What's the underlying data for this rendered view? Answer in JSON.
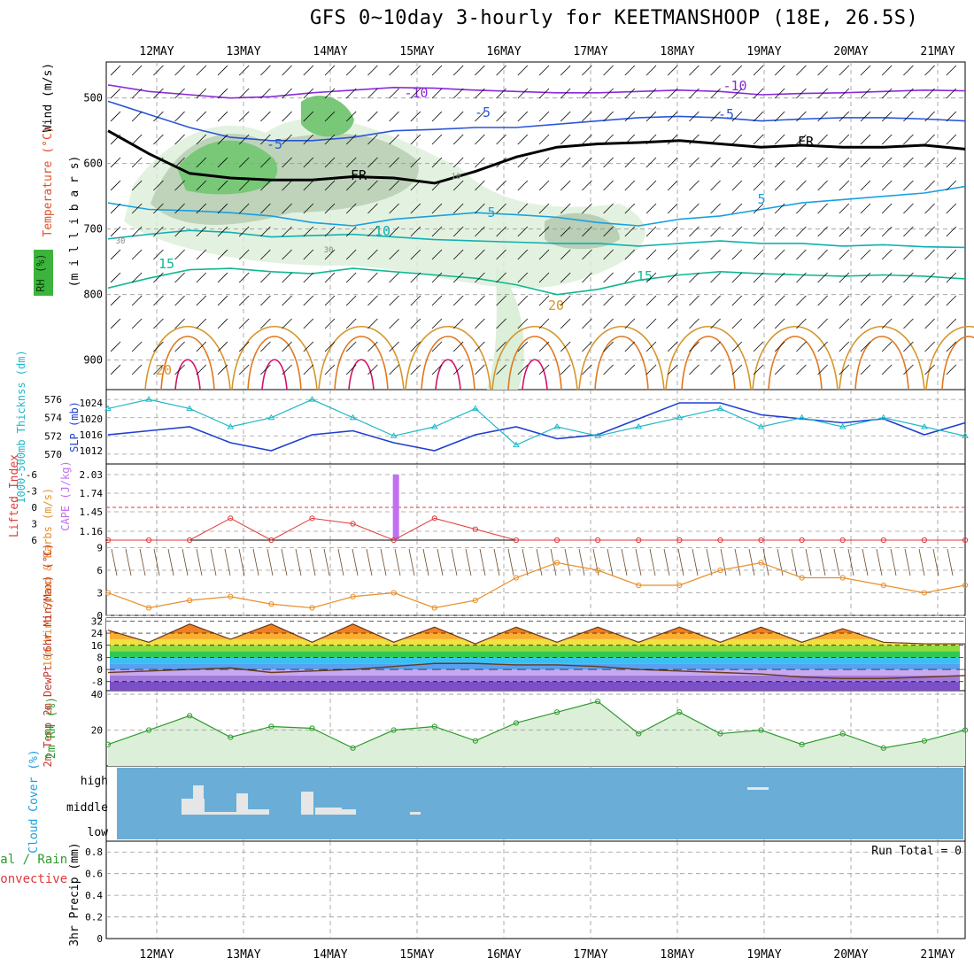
{
  "title": "GFS 0~10day 3-hourly for KEETMANSHOOP (18E, 26.5S)",
  "x_axis": {
    "labels": [
      "12MAY",
      "13MAY",
      "14MAY",
      "15MAY",
      "16MAY",
      "17MAY",
      "18MAY",
      "19MAY",
      "20MAY",
      "21MAY"
    ]
  },
  "run_total": "Run Total = 0",
  "colors": {
    "temp_warm": "#d4962a",
    "temp_hot": "#e07820",
    "temp_vhot": "#d4106a",
    "temp_cold": "#8a2bd8",
    "temp_mid": "#2a56d8",
    "temp_cool": "#1aa0e0",
    "temp_teal": "#10b0b0",
    "temp_green": "#10b890",
    "slp": "#1f3fd0",
    "thickness": "#20b8c8",
    "lifted": "#e03a3a",
    "cape": "#c070f0",
    "wind": "#e8902a",
    "rh": "#2e9a2e",
    "cloud_bg": "#6aaed8",
    "cloud_fill": "#e6e6e6"
  },
  "chart_data": [
    {
      "type": "contour",
      "name": "Vertical cross-section",
      "ylabel_parts": [
        {
          "text": "Wind (m/s)",
          "color": "#000000"
        },
        {
          "text": "Temperature (°C)",
          "color": "#e0502a"
        },
        {
          "text": "RH (%)",
          "color": "#2e9a2e"
        }
      ],
      "ylabel2": "(m i l l i b a r s)",
      "yticks": [
        500,
        600,
        700,
        800,
        900
      ],
      "ylim": [
        445,
        945
      ],
      "contour_labels": [
        "-10",
        "-10",
        "-5",
        "-5",
        "-5",
        "FR",
        "FR",
        "5",
        "5",
        "10",
        "15",
        "15",
        "20",
        "20",
        "30",
        "30",
        "10"
      ],
      "isotherms": [
        {
          "label": "-10",
          "color": "#8a2bd8",
          "values": [
            480,
            490,
            495,
            500,
            498,
            492,
            488,
            484,
            485,
            488,
            490,
            492,
            492,
            490,
            488,
            490,
            495,
            493,
            492,
            490,
            488,
            489
          ]
        },
        {
          "label": "-5",
          "color": "#2a56d8",
          "values": [
            505,
            525,
            545,
            560,
            565,
            565,
            560,
            550,
            548,
            545,
            545,
            540,
            535,
            530,
            528,
            530,
            535,
            532,
            530,
            530,
            532,
            535
          ]
        },
        {
          "label": "FR",
          "color": "#000000",
          "values": [
            550,
            585,
            615,
            622,
            625,
            625,
            620,
            622,
            630,
            612,
            590,
            575,
            570,
            568,
            565,
            570,
            575,
            572,
            575,
            575,
            572,
            578
          ]
        },
        {
          "label": "5",
          "color": "#1aa0e0",
          "values": [
            660,
            670,
            672,
            675,
            680,
            690,
            695,
            685,
            680,
            675,
            678,
            682,
            690,
            695,
            685,
            680,
            670,
            660,
            655,
            650,
            645,
            635
          ]
        },
        {
          "label": "10",
          "color": "#10b0b0",
          "values": [
            715,
            708,
            702,
            705,
            712,
            710,
            708,
            712,
            716,
            718,
            720,
            722,
            722,
            726,
            722,
            718,
            722,
            722,
            726,
            724,
            727,
            728
          ]
        },
        {
          "label": "15",
          "color": "#10b890",
          "values": [
            790,
            775,
            762,
            760,
            765,
            768,
            760,
            765,
            770,
            775,
            785,
            800,
            792,
            778,
            770,
            765,
            768,
            770,
            772,
            770,
            772,
            776
          ]
        }
      ]
    },
    {
      "type": "line",
      "name": "SLP and thickness",
      "ylabel_left": "1000-500mb Thicknss (dm)",
      "ylabel_right": "SLP (mb)",
      "yticks_left": [
        570,
        572,
        574,
        576
      ],
      "yticks_right": [
        1012,
        1016,
        1020,
        1024
      ],
      "series": [
        {
          "name": "SLP (mb)",
          "color": "#1f3fd0",
          "values": [
            1016,
            1017,
            1018,
            1014,
            1012,
            1016,
            1017,
            1014,
            1012,
            1016,
            1018,
            1015,
            1016,
            1020,
            1024,
            1024,
            1021,
            1020,
            1019,
            1020,
            1016,
            1019
          ]
        },
        {
          "name": "Thickness (dm)",
          "color": "#20b8c8",
          "values": [
            575,
            576,
            575,
            573,
            574,
            576,
            574,
            572,
            573,
            575,
            571,
            573,
            572,
            573,
            574,
            575,
            573,
            574,
            573,
            574,
            573,
            572
          ]
        }
      ]
    },
    {
      "type": "bar",
      "name": "Lifted Index and CAPE",
      "ylabel_left": "Lifted Index",
      "ylabel_right": "CAPE (J/kg)",
      "yticks_left": [
        "-6",
        "-3",
        "0",
        "3",
        "6"
      ],
      "yticks_right": [
        "2.03",
        "1.74",
        "1.45",
        "1.16"
      ],
      "lifted_index": [
        6,
        6,
        6,
        2,
        6,
        2,
        3,
        6,
        2,
        4,
        6,
        6,
        6,
        6,
        6,
        6,
        6,
        6,
        6,
        6,
        6,
        6
      ],
      "cape_bar": {
        "at": 3.5,
        "value": 2.03
      }
    },
    {
      "type": "line",
      "name": "10m wind",
      "ylabel": "10m Wind Speed & Barbs (m/s)",
      "yticks": [
        0,
        3,
        6,
        9
      ],
      "ylim": [
        0,
        10
      ],
      "values": [
        3,
        1,
        2,
        2.5,
        1.5,
        1,
        2.5,
        3,
        1,
        2,
        5,
        7,
        6,
        4,
        4,
        6,
        7,
        5,
        5,
        4,
        3,
        4
      ]
    },
    {
      "type": "area",
      "name": "2m temperature",
      "ylabel": "2m Temp 2m DewPt (6hr Min/Max) (°C)",
      "yticks": [
        -8,
        0,
        8,
        16,
        24,
        32
      ],
      "ylim": [
        -14,
        34
      ],
      "temp": [
        26,
        18,
        30,
        20,
        30,
        18,
        30,
        18,
        28,
        17,
        28,
        18,
        28,
        18,
        28,
        18,
        28,
        18,
        27,
        18,
        17,
        17
      ],
      "dewpoint": [
        -2,
        -1,
        0,
        1,
        -2,
        -1,
        0,
        2,
        4,
        4,
        3,
        3,
        2,
        0,
        -1,
        -2,
        -3,
        -5,
        -6,
        -6,
        -5,
        -4
      ]
    },
    {
      "type": "area",
      "name": "2m RH",
      "ylabel": "2m RH (%)",
      "yticks": [
        20,
        40
      ],
      "ylim": [
        0,
        42
      ],
      "values": [
        12,
        20,
        28,
        16,
        22,
        21,
        10,
        20,
        22,
        14,
        24,
        30,
        36,
        18,
        30,
        18,
        20,
        12,
        18,
        10,
        14,
        20
      ]
    },
    {
      "type": "bar",
      "name": "Cloud cover",
      "ylabel": "Cloud Cover (%)",
      "ytick_labels": [
        "high",
        "middle",
        "low"
      ]
    },
    {
      "type": "bar",
      "name": "3hr Precip",
      "ylabel": "3hr Precip (mm)",
      "ylabel_left_a": "tal / Rain",
      "ylabel_left_b": "Convective",
      "yticks": [
        "0",
        "0.2",
        "0.4",
        "0.6",
        "0.8"
      ],
      "values": [
        0,
        0,
        0,
        0,
        0,
        0,
        0,
        0,
        0,
        0,
        0,
        0,
        0,
        0,
        0,
        0,
        0,
        0,
        0,
        0,
        0,
        0
      ]
    }
  ]
}
